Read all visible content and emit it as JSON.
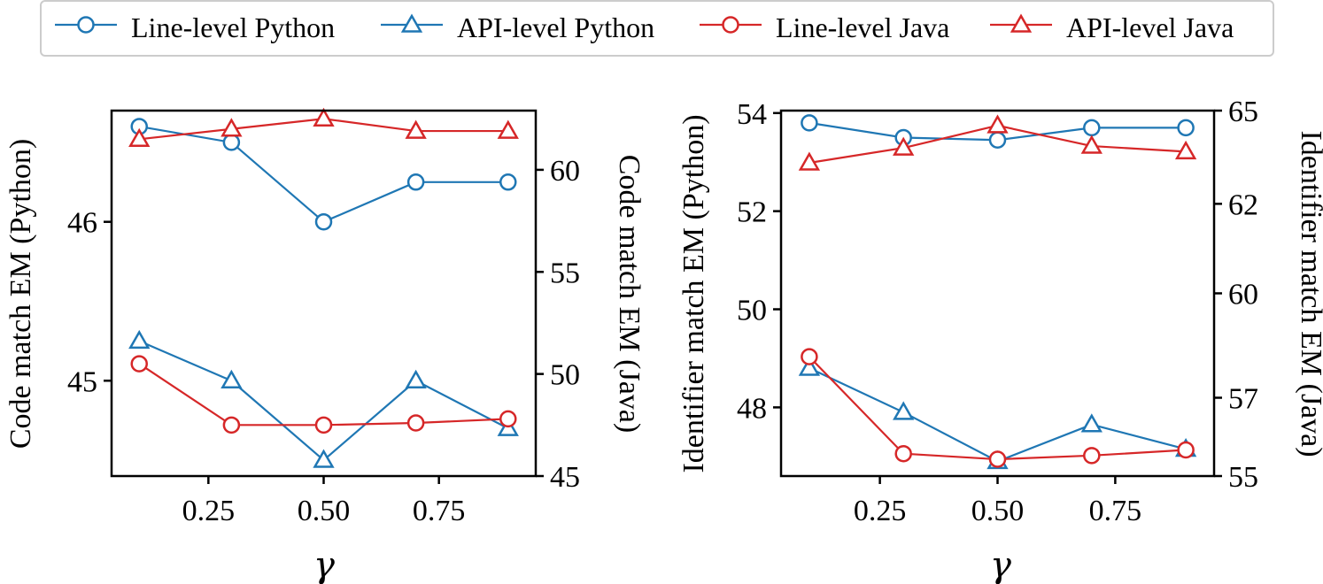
{
  "legend": {
    "entries": [
      {
        "label": "Line-level Python",
        "color": "#1f77b4",
        "marker": "circle"
      },
      {
        "label": "API-level Python",
        "color": "#1f77b4",
        "marker": "triangle"
      },
      {
        "label": "Line-level Java",
        "color": "#d62728",
        "marker": "circle"
      },
      {
        "label": "API-level Java",
        "color": "#d62728",
        "marker": "triangle"
      }
    ]
  },
  "chart_data": [
    {
      "type": "line",
      "xlabel": "γ",
      "ylabel_left": "Code match EM (Python)",
      "ylabel_right": "Code match EM (Java)",
      "x": [
        0.1,
        0.3,
        0.5,
        0.7,
        0.9
      ],
      "xlim": [
        0.04,
        0.96
      ],
      "xticks": [
        "0.25",
        "0.50",
        "0.75"
      ],
      "xtick_values": [
        0.25,
        0.5,
        0.75
      ],
      "ylim_left": [
        44.4,
        46.7
      ],
      "yticks_left": [
        45,
        46
      ],
      "ylim_right": [
        45,
        62.9
      ],
      "yticks_right": [
        45,
        50,
        55,
        60
      ],
      "series": [
        {
          "name": "Line-level Python",
          "axis": "left",
          "color": "#1f77b4",
          "marker": "circle",
          "values": [
            46.6,
            46.5,
            46.0,
            46.25,
            46.25
          ]
        },
        {
          "name": "API-level Python",
          "axis": "left",
          "color": "#1f77b4",
          "marker": "triangle",
          "values": [
            45.25,
            45.0,
            44.5,
            45.0,
            44.7
          ]
        },
        {
          "name": "Line-level Java",
          "axis": "right",
          "color": "#d62728",
          "marker": "circle",
          "values": [
            50.5,
            47.5,
            47.5,
            47.6,
            47.8
          ]
        },
        {
          "name": "API-level Java",
          "axis": "right",
          "color": "#d62728",
          "marker": "triangle",
          "values": [
            61.5,
            62.0,
            62.5,
            61.9,
            61.9
          ]
        }
      ]
    },
    {
      "type": "line",
      "xlabel": "γ",
      "ylabel_left": "Identifier match EM (Python)",
      "ylabel_right": "Identifier match EM (Java)",
      "x": [
        0.1,
        0.3,
        0.5,
        0.7,
        0.9
      ],
      "xlim": [
        0.04,
        0.96
      ],
      "xticks": [
        "0.25",
        "0.50",
        "0.75"
      ],
      "xtick_values": [
        0.25,
        0.5,
        0.75
      ],
      "ylim_left": [
        46.6,
        54.05
      ],
      "yticks_left": [
        48,
        50,
        52,
        54
      ],
      "ylim_right": [
        55,
        64.8
      ],
      "yticks_right": [
        55,
        57,
        60,
        62,
        65
      ],
      "right_tick_positions": [
        55,
        57.1,
        59.9,
        62.3,
        64.8
      ],
      "series": [
        {
          "name": "Line-level Python",
          "axis": "left",
          "color": "#1f77b4",
          "marker": "circle",
          "values": [
            53.8,
            53.5,
            53.45,
            53.7,
            53.7
          ]
        },
        {
          "name": "API-level Python",
          "axis": "left",
          "color": "#1f77b4",
          "marker": "triangle",
          "values": [
            48.8,
            47.9,
            46.9,
            47.65,
            47.15
          ]
        },
        {
          "name": "Line-level Java",
          "axis": "right",
          "color": "#d62728",
          "marker": "circle",
          "values": [
            58.2,
            55.6,
            55.45,
            55.55,
            55.7
          ]
        },
        {
          "name": "API-level Java",
          "axis": "right",
          "color": "#d62728",
          "marker": "triangle",
          "values": [
            63.4,
            63.8,
            64.4,
            63.85,
            63.7
          ]
        }
      ]
    }
  ]
}
